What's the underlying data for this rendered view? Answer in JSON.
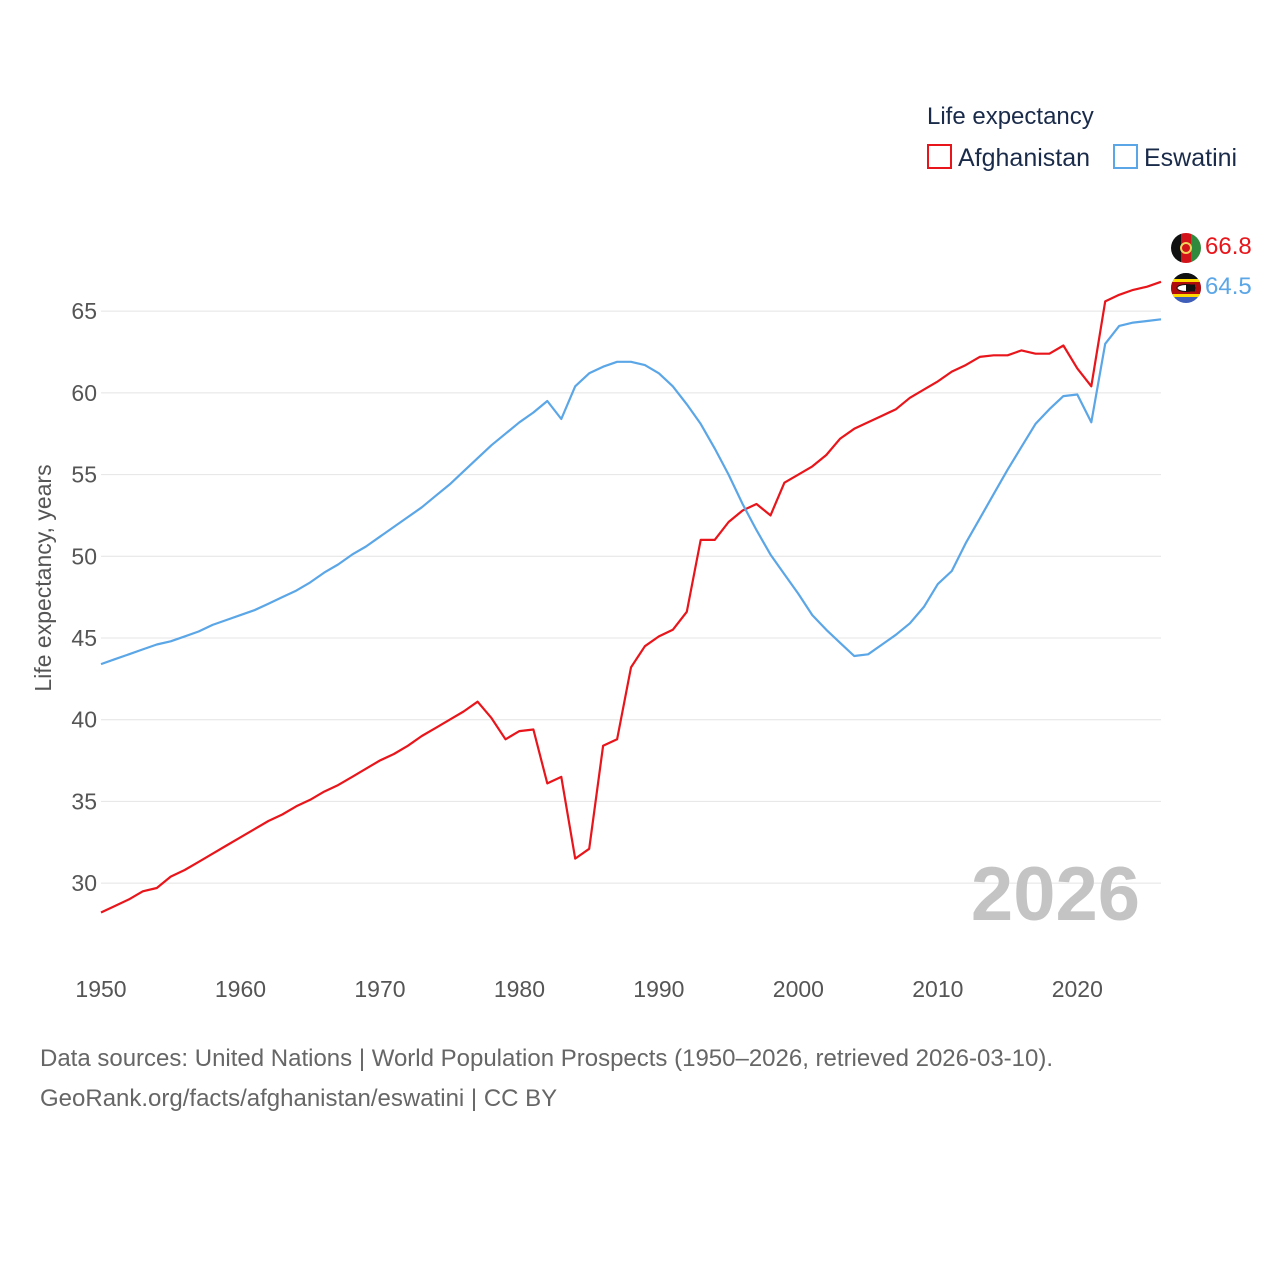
{
  "chart_data": {
    "type": "line",
    "title": "Life expectancy",
    "ylabel": "Life expectancy, years",
    "xlabel": "",
    "xlim": [
      1950,
      2026
    ],
    "ylim": [
      25.6,
      69.6
    ],
    "x_ticks": [
      1950,
      1960,
      1970,
      1980,
      1990,
      2000,
      2010,
      2020
    ],
    "y_ticks": [
      30,
      35,
      40,
      45,
      50,
      55,
      60,
      65
    ],
    "watermark_year": "2026",
    "series": [
      {
        "name": "Afghanistan",
        "color": "#e8151b",
        "end_label": "66.8",
        "points": [
          [
            1950,
            28.2
          ],
          [
            1951,
            28.6
          ],
          [
            1952,
            29.0
          ],
          [
            1953,
            29.5
          ],
          [
            1954,
            29.7
          ],
          [
            1955,
            30.4
          ],
          [
            1956,
            30.8
          ],
          [
            1957,
            31.3
          ],
          [
            1958,
            31.8
          ],
          [
            1959,
            32.3
          ],
          [
            1960,
            32.8
          ],
          [
            1961,
            33.3
          ],
          [
            1962,
            33.8
          ],
          [
            1963,
            34.2
          ],
          [
            1964,
            34.7
          ],
          [
            1965,
            35.1
          ],
          [
            1966,
            35.6
          ],
          [
            1967,
            36.0
          ],
          [
            1968,
            36.5
          ],
          [
            1969,
            37.0
          ],
          [
            1970,
            37.5
          ],
          [
            1971,
            37.9
          ],
          [
            1972,
            38.4
          ],
          [
            1973,
            39.0
          ],
          [
            1974,
            39.5
          ],
          [
            1975,
            40.0
          ],
          [
            1976,
            40.5
          ],
          [
            1977,
            41.1
          ],
          [
            1978,
            40.1
          ],
          [
            1979,
            38.8
          ],
          [
            1980,
            39.3
          ],
          [
            1981,
            39.4
          ],
          [
            1982,
            36.1
          ],
          [
            1983,
            36.5
          ],
          [
            1984,
            31.5
          ],
          [
            1985,
            32.1
          ],
          [
            1986,
            38.4
          ],
          [
            1987,
            38.8
          ],
          [
            1988,
            43.2
          ],
          [
            1989,
            44.5
          ],
          [
            1990,
            45.1
          ],
          [
            1991,
            45.5
          ],
          [
            1992,
            46.6
          ],
          [
            1993,
            51.0
          ],
          [
            1994,
            51.0
          ],
          [
            1995,
            52.1
          ],
          [
            1996,
            52.8
          ],
          [
            1997,
            53.2
          ],
          [
            1998,
            52.5
          ],
          [
            1999,
            54.5
          ],
          [
            2000,
            55.0
          ],
          [
            2001,
            55.5
          ],
          [
            2002,
            56.2
          ],
          [
            2003,
            57.2
          ],
          [
            2004,
            57.8
          ],
          [
            2005,
            58.2
          ],
          [
            2006,
            58.6
          ],
          [
            2007,
            59.0
          ],
          [
            2008,
            59.7
          ],
          [
            2009,
            60.2
          ],
          [
            2010,
            60.7
          ],
          [
            2011,
            61.3
          ],
          [
            2012,
            61.7
          ],
          [
            2013,
            62.2
          ],
          [
            2014,
            62.3
          ],
          [
            2015,
            62.3
          ],
          [
            2016,
            62.6
          ],
          [
            2017,
            62.4
          ],
          [
            2018,
            62.4
          ],
          [
            2019,
            62.9
          ],
          [
            2020,
            61.5
          ],
          [
            2021,
            60.4
          ],
          [
            2022,
            65.6
          ],
          [
            2023,
            66.0
          ],
          [
            2024,
            66.3
          ],
          [
            2025,
            66.5
          ],
          [
            2026,
            66.8
          ]
        ]
      },
      {
        "name": "Eswatini",
        "color": "#5ba6e6",
        "end_label": "64.5",
        "points": [
          [
            1950,
            43.4
          ],
          [
            1951,
            43.7
          ],
          [
            1952,
            44.0
          ],
          [
            1953,
            44.3
          ],
          [
            1954,
            44.6
          ],
          [
            1955,
            44.8
          ],
          [
            1956,
            45.1
          ],
          [
            1957,
            45.4
          ],
          [
            1958,
            45.8
          ],
          [
            1959,
            46.1
          ],
          [
            1960,
            46.4
          ],
          [
            1961,
            46.7
          ],
          [
            1962,
            47.1
          ],
          [
            1963,
            47.5
          ],
          [
            1964,
            47.9
          ],
          [
            1965,
            48.4
          ],
          [
            1966,
            49.0
          ],
          [
            1967,
            49.5
          ],
          [
            1968,
            50.1
          ],
          [
            1969,
            50.6
          ],
          [
            1970,
            51.2
          ],
          [
            1971,
            51.8
          ],
          [
            1972,
            52.4
          ],
          [
            1973,
            53.0
          ],
          [
            1974,
            53.7
          ],
          [
            1975,
            54.4
          ],
          [
            1976,
            55.2
          ],
          [
            1977,
            56.0
          ],
          [
            1978,
            56.8
          ],
          [
            1979,
            57.5
          ],
          [
            1980,
            58.2
          ],
          [
            1981,
            58.8
          ],
          [
            1982,
            59.5
          ],
          [
            1983,
            58.4
          ],
          [
            1984,
            60.4
          ],
          [
            1985,
            61.2
          ],
          [
            1986,
            61.6
          ],
          [
            1987,
            61.9
          ],
          [
            1988,
            61.9
          ],
          [
            1989,
            61.7
          ],
          [
            1990,
            61.2
          ],
          [
            1991,
            60.4
          ],
          [
            1992,
            59.3
          ],
          [
            1993,
            58.1
          ],
          [
            1994,
            56.6
          ],
          [
            1995,
            55.0
          ],
          [
            1996,
            53.2
          ],
          [
            1997,
            51.6
          ],
          [
            1998,
            50.1
          ],
          [
            1999,
            48.9
          ],
          [
            2000,
            47.7
          ],
          [
            2001,
            46.4
          ],
          [
            2002,
            45.5
          ],
          [
            2003,
            44.7
          ],
          [
            2004,
            43.9
          ],
          [
            2005,
            44.0
          ],
          [
            2006,
            44.6
          ],
          [
            2007,
            45.2
          ],
          [
            2008,
            45.9
          ],
          [
            2009,
            46.9
          ],
          [
            2010,
            48.3
          ],
          [
            2011,
            49.1
          ],
          [
            2012,
            50.8
          ],
          [
            2013,
            52.3
          ],
          [
            2014,
            53.8
          ],
          [
            2015,
            55.3
          ],
          [
            2016,
            56.7
          ],
          [
            2017,
            58.1
          ],
          [
            2018,
            59.0
          ],
          [
            2019,
            59.8
          ],
          [
            2020,
            59.9
          ],
          [
            2021,
            58.2
          ],
          [
            2022,
            63.0
          ],
          [
            2023,
            64.1
          ],
          [
            2024,
            64.3
          ],
          [
            2025,
            64.4
          ],
          [
            2026,
            64.5
          ]
        ]
      }
    ]
  },
  "footer": {
    "sources": "Data sources: United Nations | World Population Prospects (1950–2026, retrieved 2026-03-10).",
    "link": "GeoRank.org/facts/afghanistan/eswatini | CC BY"
  }
}
